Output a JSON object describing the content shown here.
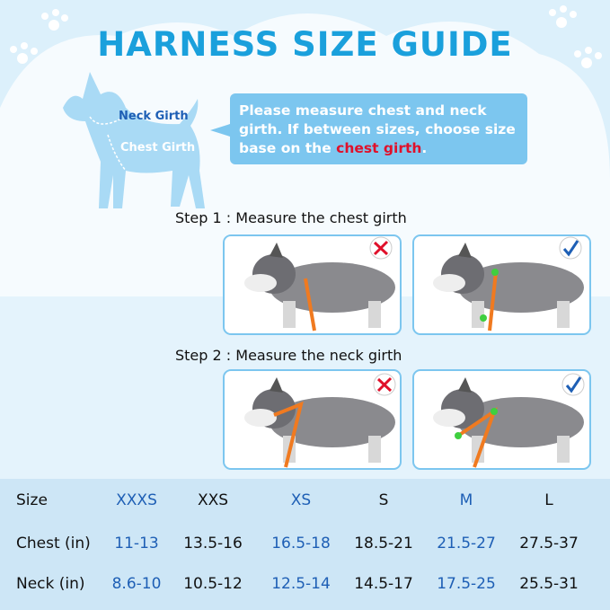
{
  "header": {
    "title": "HARNESS SIZE GUIDE"
  },
  "diagram": {
    "neck_label": "Neck Girth",
    "chest_label": "Chest Girth"
  },
  "note": {
    "text": "Please measure chest and neck girth. If between sizes, choose size base on the",
    "highlight": "chest girth",
    "end": "."
  },
  "steps": [
    {
      "label": "Step 1 : Measure the chest girth"
    },
    {
      "label": "Step 2 : Measure the neck girth"
    }
  ],
  "table": {
    "rows": [
      [
        "Size",
        "XXXS",
        "XXS",
        "XS",
        "S",
        "M",
        "L"
      ],
      [
        "Chest (in)",
        "11-13",
        "13.5-16",
        "16.5-18",
        "18.5-21",
        "21.5-27",
        "27.5-37"
      ],
      [
        "Neck (in)",
        "8.6-10",
        "10.5-12",
        "12.5-14",
        "14.5-17",
        "17.5-25",
        "25.5-31"
      ]
    ]
  }
}
